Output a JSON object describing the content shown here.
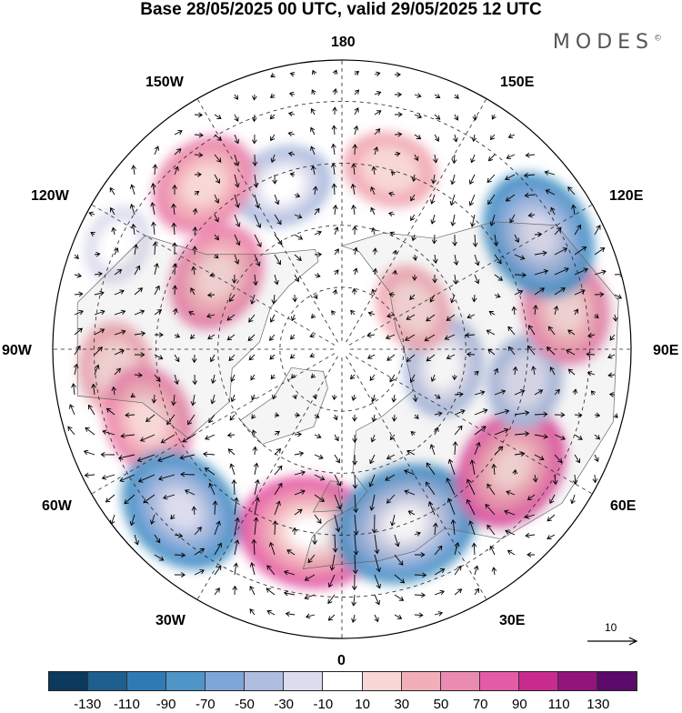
{
  "title": "Base 28/05/2025 00 UTC, valid 29/05/2025 12 UTC",
  "brand": "MODES",
  "brand_mark": "©",
  "longitude_labels": {
    "top": "180",
    "top_left": "150W",
    "top_right": "150E",
    "upper_left": "120W",
    "upper_right": "120E",
    "left": "90W",
    "right": "90E",
    "lower_left": "60W",
    "lower_right": "60E",
    "bottom_left": "30W",
    "bottom_right": "30E",
    "bottom": "0"
  },
  "vector_reference": "10",
  "colorbar": {
    "colors": [
      "#0b3a5e",
      "#1f5f8f",
      "#2f7ab5",
      "#4e95c8",
      "#7ea7d8",
      "#aebddf",
      "#dcdcee",
      "#ffffff",
      "#f8d7d7",
      "#f2afb9",
      "#ec8bb1",
      "#e45ba8",
      "#c92a8e",
      "#93157b",
      "#5b0a6b"
    ],
    "ticks": [
      "-130",
      "-110",
      "-90",
      "-70",
      "-50",
      "-30",
      "-10",
      "10",
      "30",
      "50",
      "70",
      "90",
      "110",
      "130"
    ]
  },
  "map": {
    "projection": "north-polar-stereographic",
    "field": "anomaly-shading-with-wind-vectors",
    "anomalies": [
      {
        "lon": 165,
        "lat": 45,
        "value": 40
      },
      {
        "lon": -160,
        "lat": 48,
        "value": -45
      },
      {
        "lon": -140,
        "lat": 38,
        "value": 55
      },
      {
        "lon": -115,
        "lat": 30,
        "value": -25
      },
      {
        "lon": -120,
        "lat": 55,
        "value": 55
      },
      {
        "lon": -85,
        "lat": 35,
        "value": 40
      },
      {
        "lon": -70,
        "lat": 40,
        "value": 55
      },
      {
        "lon": -45,
        "lat": 35,
        "value": -75
      },
      {
        "lon": -10,
        "lat": 45,
        "value": 85
      },
      {
        "lon": 20,
        "lat": 45,
        "value": -90
      },
      {
        "lon": 55,
        "lat": 40,
        "value": 70
      },
      {
        "lon": 80,
        "lat": 45,
        "value": -40
      },
      {
        "lon": 100,
        "lat": 35,
        "value": 55
      },
      {
        "lon": 120,
        "lat": 35,
        "value": -75
      },
      {
        "lon": 80,
        "lat": 65,
        "value": -45
      },
      {
        "lon": 120,
        "lat": 70,
        "value": 35
      }
    ]
  }
}
